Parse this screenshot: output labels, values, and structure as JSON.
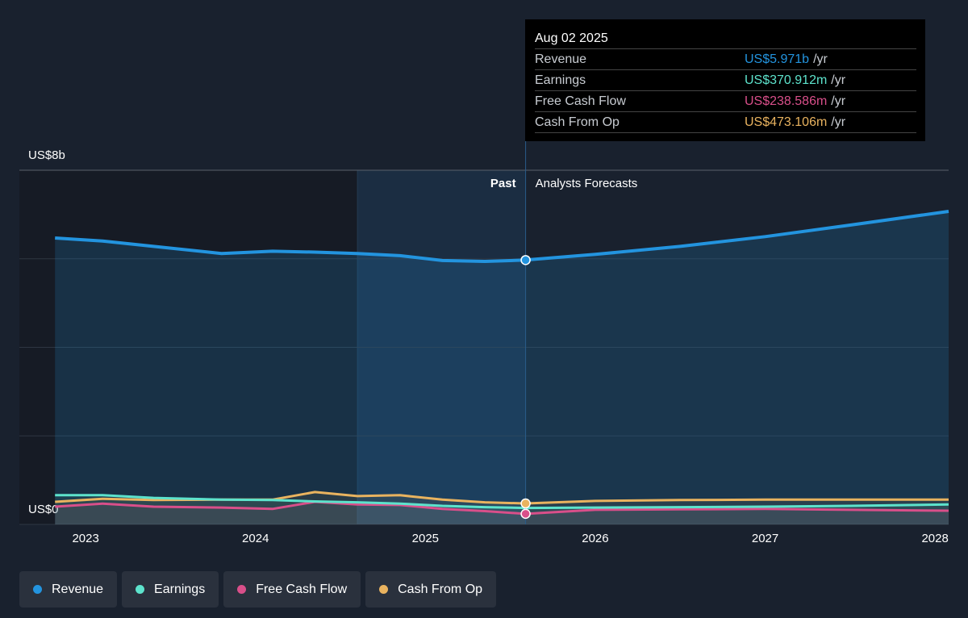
{
  "chart_data": {
    "type": "line",
    "x": [
      2022.82,
      2023.1,
      2023.4,
      2023.8,
      2024.1,
      2024.35,
      2024.6,
      2024.85,
      2025.1,
      2025.35,
      2025.59,
      2026,
      2026.5,
      2027,
      2027.5,
      2028.08
    ],
    "series": [
      {
        "name": "Revenue",
        "color": "#2394df",
        "values": [
          6.47,
          6.4,
          6.28,
          6.12,
          6.17,
          6.15,
          6.12,
          6.07,
          5.96,
          5.94,
          5.971,
          6.1,
          6.28,
          6.5,
          6.76,
          7.07
        ],
        "tooltip_value": 5.971,
        "tooltip_label": "US$5.971b"
      },
      {
        "name": "Earnings",
        "color": "#5de3cc",
        "values": [
          0.66,
          0.66,
          0.6,
          0.56,
          0.55,
          0.52,
          0.5,
          0.47,
          0.42,
          0.39,
          0.371,
          0.38,
          0.39,
          0.4,
          0.42,
          0.45
        ],
        "tooltip_value": 0.370912,
        "tooltip_label": "US$370.912m"
      },
      {
        "name": "Free Cash Flow",
        "color": "#d94f8a",
        "values": [
          0.4,
          0.47,
          0.4,
          0.38,
          0.35,
          0.51,
          0.45,
          0.44,
          0.35,
          0.3,
          0.239,
          0.33,
          0.34,
          0.35,
          0.33,
          0.31
        ],
        "tooltip_value": 0.238586,
        "tooltip_label": "US$238.586m"
      },
      {
        "name": "Cash From Op",
        "color": "#e9b35f",
        "values": [
          0.51,
          0.58,
          0.55,
          0.56,
          0.56,
          0.73,
          0.64,
          0.66,
          0.56,
          0.5,
          0.473,
          0.53,
          0.55,
          0.56,
          0.56,
          0.56
        ],
        "tooltip_value": 0.473106,
        "tooltip_label": "US$473.106m"
      }
    ],
    "xlim": [
      2022.61,
      2028.08
    ],
    "xticks": [
      2023,
      2024,
      2025,
      2026,
      2027,
      2028
    ],
    "ylim": [
      0,
      8
    ],
    "yticks": [
      {
        "value": 0,
        "label": "US$0"
      },
      {
        "value": 8,
        "label": "US$8b"
      }
    ],
    "ygrid": [
      0,
      2,
      4,
      6,
      8
    ],
    "highlight": [
      2024.6,
      2025.59
    ],
    "past_label": "Past",
    "forecast_label": "Analysts Forecasts",
    "tooltip": {
      "title": "Aug 02 2025",
      "x": 2025.59,
      "unit": "/yr"
    }
  }
}
